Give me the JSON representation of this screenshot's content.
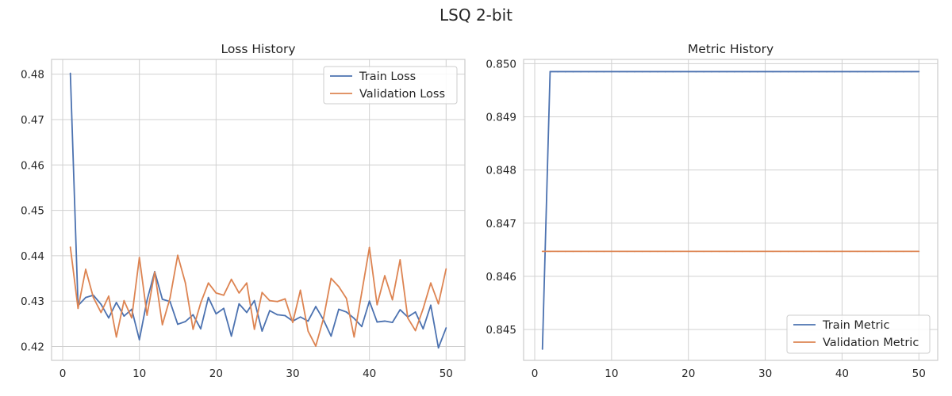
{
  "suptitle": "LSQ 2-bit",
  "colors": {
    "blue": "#4c72b0",
    "orange": "#dd8452"
  },
  "chart_data": [
    {
      "type": "line",
      "title": "Loss History",
      "xlabel": "",
      "ylabel": "",
      "xlim": [
        -1.45,
        52.45
      ],
      "ylim": [
        0.41695,
        0.48325
      ],
      "xticks": [
        0,
        10,
        20,
        30,
        40,
        50
      ],
      "yticks": [
        0.42,
        0.43,
        0.44,
        0.45,
        0.46,
        0.47,
        0.48
      ],
      "grid": true,
      "legend": "top-right",
      "x": [
        1,
        2,
        3,
        4,
        5,
        6,
        7,
        8,
        9,
        10,
        11,
        12,
        13,
        14,
        15,
        16,
        17,
        18,
        19,
        20,
        21,
        22,
        23,
        24,
        25,
        26,
        27,
        28,
        29,
        30,
        31,
        32,
        33,
        34,
        35,
        36,
        37,
        38,
        39,
        40,
        41,
        42,
        43,
        44,
        45,
        46,
        47,
        48,
        49,
        50
      ],
      "series": [
        {
          "name": "Train Loss",
          "color": "#4c72b0",
          "values": [
            0.4802,
            0.429,
            0.4308,
            0.4313,
            0.4293,
            0.4263,
            0.4297,
            0.4267,
            0.4282,
            0.4215,
            0.4302,
            0.4365,
            0.4304,
            0.4299,
            0.4249,
            0.4255,
            0.427,
            0.4239,
            0.4308,
            0.4272,
            0.4284,
            0.4223,
            0.4294,
            0.4275,
            0.4301,
            0.4234,
            0.4279,
            0.427,
            0.4268,
            0.4256,
            0.4265,
            0.4256,
            0.4288,
            0.4259,
            0.4223,
            0.4282,
            0.4276,
            0.4262,
            0.4244,
            0.43,
            0.4254,
            0.4256,
            0.4253,
            0.4281,
            0.4265,
            0.4276,
            0.4239,
            0.4291,
            0.4197,
            0.4241
          ]
        },
        {
          "name": "Validation Loss",
          "color": "#dd8452",
          "values": [
            0.4419,
            0.4284,
            0.437,
            0.4308,
            0.4275,
            0.4311,
            0.4221,
            0.4301,
            0.4263,
            0.4396,
            0.4269,
            0.4364,
            0.4248,
            0.4307,
            0.4401,
            0.434,
            0.4238,
            0.4296,
            0.434,
            0.4318,
            0.4313,
            0.4348,
            0.4318,
            0.434,
            0.4238,
            0.4319,
            0.4301,
            0.4299,
            0.4305,
            0.4253,
            0.4324,
            0.4234,
            0.4201,
            0.4261,
            0.435,
            0.4332,
            0.4306,
            0.4221,
            0.4319,
            0.4418,
            0.4292,
            0.4356,
            0.4303,
            0.4391,
            0.4263,
            0.4235,
            0.4283,
            0.434,
            0.4294,
            0.4371
          ]
        }
      ]
    },
    {
      "type": "line",
      "title": "Metric History",
      "xlabel": "",
      "ylabel": "",
      "xlim": [
        -1.45,
        52.45
      ],
      "ylim": [
        0.84442,
        0.85008
      ],
      "xticks": [
        0,
        10,
        20,
        30,
        40,
        50
      ],
      "yticks": [
        0.845,
        0.846,
        0.847,
        0.848,
        0.849,
        0.85
      ],
      "grid": true,
      "legend": "bottom-right",
      "x": [
        1,
        2,
        3,
        4,
        5,
        6,
        7,
        8,
        9,
        10,
        11,
        12,
        13,
        14,
        15,
        16,
        17,
        18,
        19,
        20,
        21,
        22,
        23,
        24,
        25,
        26,
        27,
        28,
        29,
        30,
        31,
        32,
        33,
        34,
        35,
        36,
        37,
        38,
        39,
        40,
        41,
        42,
        43,
        44,
        45,
        46,
        47,
        48,
        49,
        50
      ],
      "series": [
        {
          "name": "Train Metric",
          "color": "#4c72b0",
          "values": [
            0.84463,
            0.84985,
            0.84985,
            0.84985,
            0.84985,
            0.84985,
            0.84985,
            0.84985,
            0.84985,
            0.84985,
            0.84985,
            0.84985,
            0.84985,
            0.84985,
            0.84985,
            0.84985,
            0.84985,
            0.84985,
            0.84985,
            0.84985,
            0.84985,
            0.84985,
            0.84985,
            0.84985,
            0.84985,
            0.84985,
            0.84985,
            0.84985,
            0.84985,
            0.84985,
            0.84985,
            0.84985,
            0.84985,
            0.84985,
            0.84985,
            0.84985,
            0.84985,
            0.84985,
            0.84985,
            0.84985,
            0.84985,
            0.84985,
            0.84985,
            0.84985,
            0.84985,
            0.84985,
            0.84985,
            0.84985,
            0.84985,
            0.84985
          ]
        },
        {
          "name": "Validation Metric",
          "color": "#dd8452",
          "values": [
            0.84647,
            0.84647,
            0.84647,
            0.84647,
            0.84647,
            0.84647,
            0.84647,
            0.84647,
            0.84647,
            0.84647,
            0.84647,
            0.84647,
            0.84647,
            0.84647,
            0.84647,
            0.84647,
            0.84647,
            0.84647,
            0.84647,
            0.84647,
            0.84647,
            0.84647,
            0.84647,
            0.84647,
            0.84647,
            0.84647,
            0.84647,
            0.84647,
            0.84647,
            0.84647,
            0.84647,
            0.84647,
            0.84647,
            0.84647,
            0.84647,
            0.84647,
            0.84647,
            0.84647,
            0.84647,
            0.84647,
            0.84647,
            0.84647,
            0.84647,
            0.84647,
            0.84647,
            0.84647,
            0.84647,
            0.84647,
            0.84647,
            0.84647
          ]
        }
      ]
    }
  ]
}
